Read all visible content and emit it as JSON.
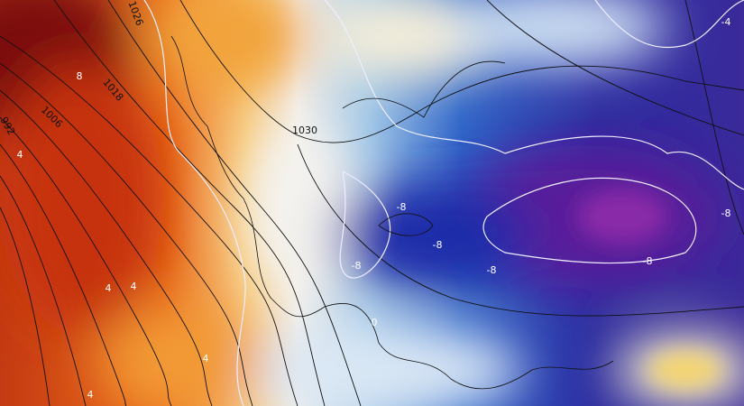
{
  "map": {
    "isobar_labels": [
      "1026",
      "1018",
      "1006",
      "992",
      "1030"
    ],
    "isotherm_labels": [
      "8",
      "4",
      "4",
      "4",
      "4",
      "4",
      "0",
      "-8",
      "-8",
      "-8",
      "-8",
      "-8",
      "-8",
      "-4"
    ]
  }
}
